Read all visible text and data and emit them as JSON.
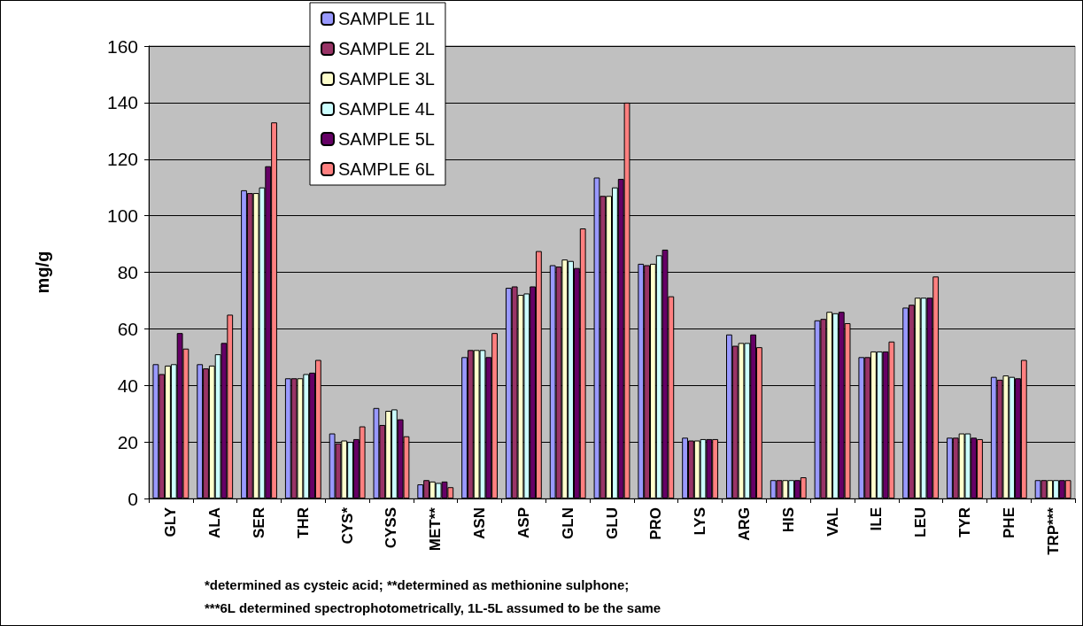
{
  "chart_data": {
    "type": "bar",
    "ylabel": "mg/g",
    "categories": [
      "GLY",
      "ALA",
      "SER",
      "THR",
      "CYS*",
      "CYSS",
      "MET**",
      "ASN",
      "ASP",
      "GLN",
      "GLU",
      "PRO",
      "LYS",
      "ARG",
      "HIS",
      "VAL",
      "ILE",
      "LEU",
      "TYR",
      "PHE",
      "TRP***"
    ],
    "series": [
      {
        "name": "SAMPLE 1L",
        "color": "#9999ff",
        "values": [
          47.5,
          47.5,
          109,
          42.5,
          23,
          32,
          5,
          50,
          74.5,
          82.5,
          113.5,
          83,
          21.5,
          58,
          6.5,
          63,
          50,
          67.5,
          21.5,
          43,
          6.5
        ]
      },
      {
        "name": "SAMPLE 2L",
        "color": "#993366",
        "values": [
          44,
          46,
          108,
          42.5,
          19.5,
          26,
          6.5,
          52.5,
          75,
          82,
          107,
          82.5,
          20.5,
          54,
          6.5,
          63.5,
          50,
          68.5,
          21.5,
          42,
          6.5
        ]
      },
      {
        "name": "SAMPLE 3L",
        "color": "#ffffcc",
        "values": [
          47,
          47,
          108,
          42.5,
          20.5,
          31,
          6,
          52.5,
          72,
          84.5,
          107,
          83,
          20.5,
          55,
          6.5,
          66,
          52,
          71,
          23,
          43.5,
          6.5
        ]
      },
      {
        "name": "SAMPLE 4L",
        "color": "#ccffff",
        "values": [
          47.5,
          51,
          110,
          44,
          20,
          31.5,
          5.5,
          52.5,
          72.5,
          84,
          110,
          86,
          21,
          55,
          6.5,
          65.5,
          52,
          71,
          23,
          43,
          6.5
        ]
      },
      {
        "name": "SAMPLE 5L",
        "color": "#660066",
        "values": [
          58.5,
          55,
          117.5,
          44.5,
          21,
          28,
          6,
          50,
          75,
          81.5,
          113,
          88,
          21,
          58,
          6.5,
          66,
          52,
          71,
          21.5,
          42.5,
          6.5
        ]
      },
      {
        "name": "SAMPLE 6L",
        "color": "#ff8080",
        "values": [
          53,
          65,
          133,
          49,
          25.5,
          22,
          4,
          58.5,
          87.5,
          95.5,
          140,
          71.5,
          21,
          53.5,
          7.5,
          62,
          55.5,
          78.5,
          21,
          49,
          6.5
        ]
      }
    ],
    "ylim": [
      0,
      160
    ],
    "yticks": [
      0,
      20,
      40,
      60,
      80,
      100,
      120,
      140,
      160
    ],
    "grid": "y",
    "legend": "top",
    "annotations": [
      "*determined as cysteic acid; **determined as methionine sulphone;",
      "***6L determined spectrophotometrically, 1L-5L assumed to be the same"
    ]
  }
}
